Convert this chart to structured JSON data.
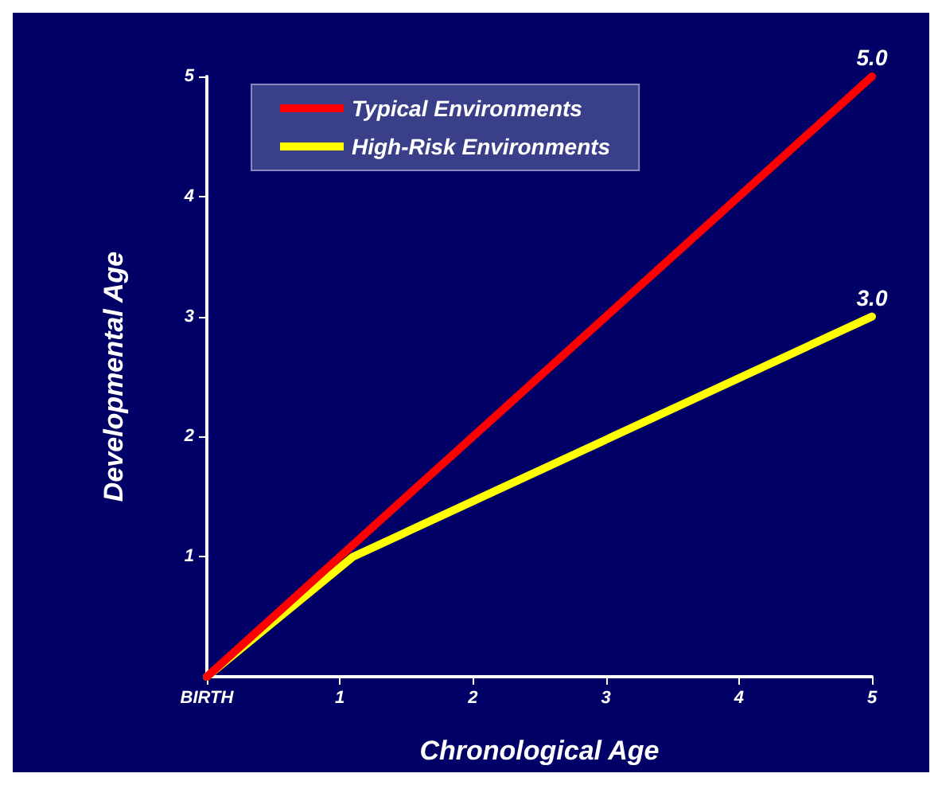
{
  "chart_data": {
    "type": "line",
    "xlabel": "Chronological Age",
    "ylabel": "Developmental Age",
    "xlim": [
      0,
      5
    ],
    "xticks": [
      {
        "value": 0,
        "label": "BIRTH"
      },
      1,
      2,
      3,
      4,
      5
    ],
    "ylim": [
      0,
      5
    ],
    "yticks": [
      1,
      2,
      3,
      4,
      5
    ],
    "series": [
      {
        "name": "Typical Environments",
        "color": "#ff0000",
        "x": [
          0,
          5
        ],
        "values": [
          0,
          5
        ],
        "value_labels": [
          null,
          "5.0"
        ]
      },
      {
        "name": "High-Risk Environments",
        "color": "#ffff00",
        "x": [
          0,
          1.1,
          5
        ],
        "values": [
          0,
          1.0,
          3.0
        ],
        "value_labels": [
          null,
          null,
          "3.0"
        ]
      }
    ],
    "legend": "top left",
    "grid": false,
    "marker": "none",
    "line_style": "solid"
  }
}
